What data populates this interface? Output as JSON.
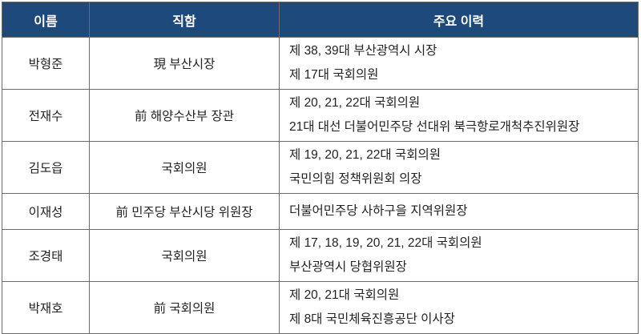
{
  "headers": {
    "name": "이름",
    "position": "직함",
    "history": "주요 이력"
  },
  "header_color": "#1d4a7a",
  "rows": [
    {
      "name": "박형준",
      "position": "現 부산시장",
      "history": [
        "제 38, 39대 부산광역시 시장",
        "제 17대 국회의원"
      ]
    },
    {
      "name": "전재수",
      "position": "前 해양수산부 장관",
      "history": [
        "제 20, 21, 22대 국회의원",
        "21대 대선 더불어민주당 선대위 북극항로개척추진위원장"
      ]
    },
    {
      "name": "김도읍",
      "position": "국회의원",
      "history": [
        "제 19, 20, 21, 22대 국회의원",
        "국민의힘 정책위원회 의장"
      ]
    },
    {
      "name": "이재성",
      "position": "前 민주당 부산시당 위원장",
      "history": [
        "더불어민주당 사하구을 지역위원장"
      ]
    },
    {
      "name": "조경태",
      "position": "국회의원",
      "history": [
        "제 17, 18, 19, 20, 21, 22대 국회의원",
        "부산광역시 당협위원장"
      ]
    },
    {
      "name": "박재호",
      "position": "前 국회의원",
      "history": [
        "제 20, 21대 국회의원",
        "제 8대 국민체육진흥공단 이사장"
      ]
    }
  ]
}
